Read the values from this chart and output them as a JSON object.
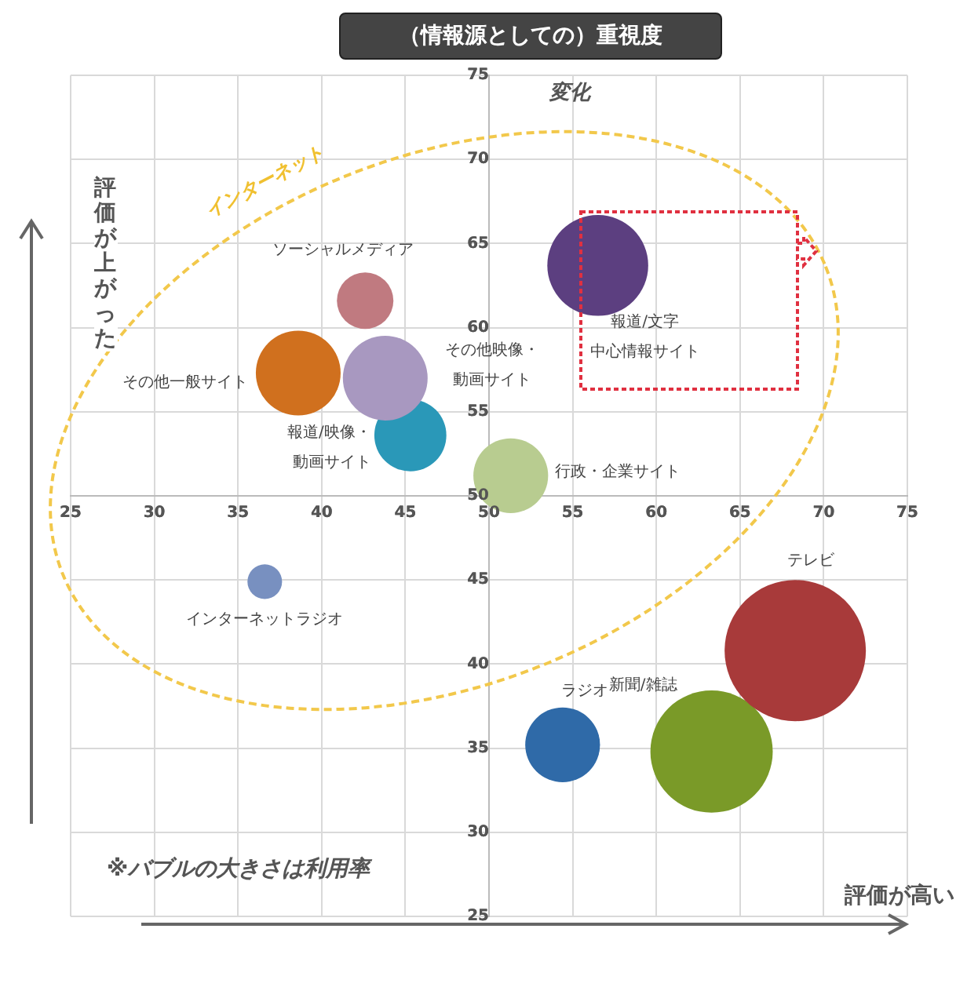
{
  "chart_data": {
    "type": "bubble",
    "title": "（情報源としての）重視度",
    "ylabel": "変化",
    "annotations": [
      "評価が上がった",
      "評価が高い",
      "※バブルの大きさは利用率",
      "インターネット"
    ],
    "xlim": [
      25,
      75
    ],
    "xticks": [
      25,
      30,
      35,
      40,
      45,
      50,
      55,
      60,
      65,
      70,
      75
    ],
    "ylim": [
      25,
      75
    ],
    "yticks": [
      25,
      30,
      35,
      40,
      45,
      50,
      55,
      60,
      65,
      70,
      75
    ],
    "grid": true,
    "series": [
      {
        "name": "ソーシャルメディア",
        "color": "#c07a80",
        "x": [
          42.6
        ],
        "values": [
          61.6
        ],
        "sizes": [
          0.16
        ]
      },
      {
        "name": "報道/文字中心情報サイト",
        "color": "#5c3f80",
        "x": [
          56.5
        ],
        "values": [
          63.7
        ],
        "sizes": [
          0.51
        ]
      },
      {
        "name": "その他一般サイト",
        "color": "#d0701e",
        "x": [
          38.6
        ],
        "values": [
          57.3
        ],
        "sizes": [
          0.36
        ]
      },
      {
        "name": "その他映像・動画サイト",
        "color": "#a898c0",
        "x": [
          43.8
        ],
        "values": [
          57.0
        ],
        "sizes": [
          0.36
        ]
      },
      {
        "name": "報道/映像・動画サイト",
        "color": "#2a98b8",
        "x": [
          45.3
        ],
        "values": [
          53.6
        ],
        "sizes": [
          0.26
        ]
      },
      {
        "name": "行政・企業サイト",
        "color": "#b8cc90",
        "x": [
          51.3
        ],
        "values": [
          51.2
        ],
        "sizes": [
          0.28
        ]
      },
      {
        "name": "インターネットラジオ",
        "color": "#7890c0",
        "x": [
          36.6
        ],
        "values": [
          44.9
        ],
        "sizes": [
          0.06
        ]
      },
      {
        "name": "テレビ",
        "color": "#a83a3a",
        "x": [
          68.3
        ],
        "values": [
          40.8
        ],
        "sizes": [
          1
        ]
      },
      {
        "name": "新聞/雑誌",
        "color": "#7a9a28",
        "x": [
          63.3
        ],
        "values": [
          34.8
        ],
        "sizes": [
          0.75
        ]
      },
      {
        "name": "ラジオ",
        "color": "#2f6aa8",
        "x": [
          54.4
        ],
        "values": [
          35.2
        ],
        "sizes": [
          0.28
        ]
      }
    ]
  }
}
